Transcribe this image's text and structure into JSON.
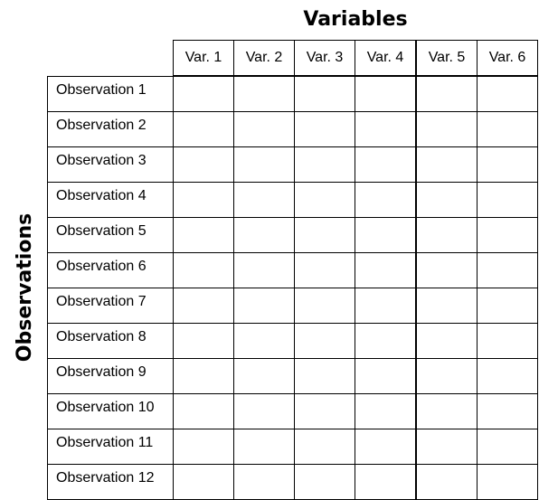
{
  "variables_title": "Variables",
  "observations_title": "Observations",
  "columns": [
    "Var. 1",
    "Var. 2",
    "Var. 3",
    "Var. 4",
    "Var. 5",
    "Var. 6"
  ],
  "rows": [
    "Observation 1",
    "Observation 2",
    "Observation 3",
    "Observation 4",
    "Observation 5",
    "Observation 6",
    "Observation 7",
    "Observation 8",
    "Observation 9",
    "Observation 10",
    "Observation 11",
    "Observation 12"
  ]
}
